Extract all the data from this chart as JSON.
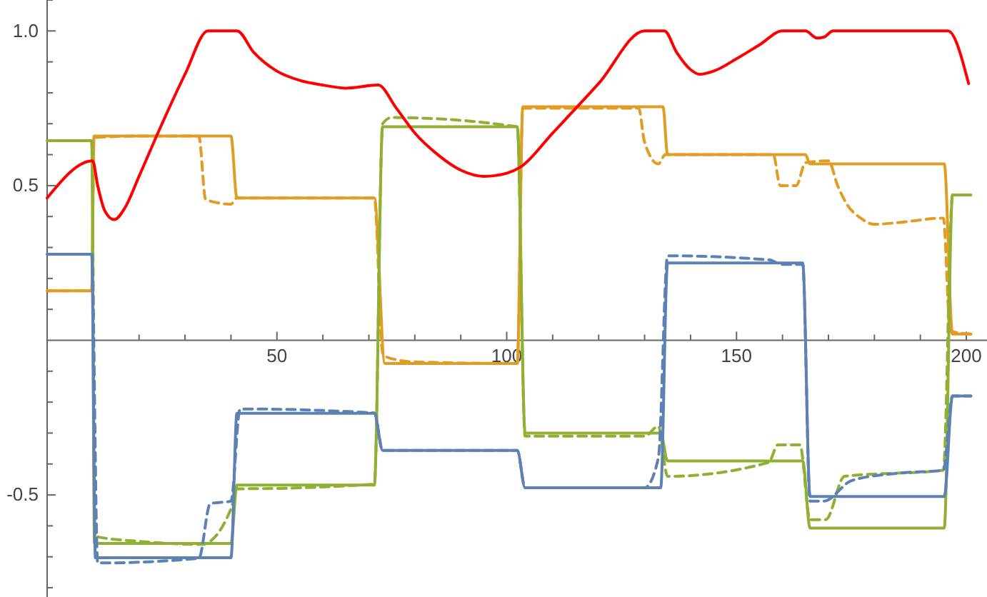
{
  "chart_data": {
    "type": "line",
    "xlim": [
      0,
      204.5
    ],
    "ylim": [
      -0.83,
      1.1
    ],
    "xticks": [
      {
        "value": 10,
        "label": null
      },
      {
        "value": 20,
        "label": null
      },
      {
        "value": 30,
        "label": null
      },
      {
        "value": 40,
        "label": null
      },
      50,
      {
        "value": 60,
        "label": null
      },
      {
        "value": 70,
        "label": null
      },
      {
        "value": 80,
        "label": null
      },
      {
        "value": 90,
        "label": null
      },
      100,
      {
        "value": 110,
        "label": null
      },
      {
        "value": 120,
        "label": null
      },
      {
        "value": 130,
        "label": null
      },
      {
        "value": 140,
        "label": null
      },
      150,
      {
        "value": 160,
        "label": null
      },
      {
        "value": 170,
        "label": null
      },
      {
        "value": 180,
        "label": null
      },
      {
        "value": 190,
        "label": null
      },
      200
    ],
    "yticks": [
      {
        "value": -0.8,
        "label": null
      },
      {
        "value": -0.7,
        "label": null
      },
      {
        "value": -0.6,
        "label": null
      },
      -0.5,
      {
        "value": -0.4,
        "label": null
      },
      {
        "value": -0.3,
        "label": null
      },
      {
        "value": -0.2,
        "label": null
      },
      {
        "value": -0.1,
        "label": null
      },
      {
        "value": 0.1,
        "label": null
      },
      {
        "value": 0.2,
        "label": null
      },
      {
        "value": 0.3,
        "label": null
      },
      {
        "value": 0.4,
        "label": null
      },
      0.5,
      {
        "value": 0.6,
        "label": null
      },
      {
        "value": 0.7,
        "label": null
      },
      {
        "value": 0.8,
        "label": null
      },
      {
        "value": 0.9,
        "label": null
      },
      {
        "value": 1,
        "label": "1.0"
      },
      {
        "value": 1.1,
        "label": null
      }
    ],
    "grid": false,
    "marker": "none",
    "series": [
      {
        "color": "#e19c24",
        "line_style": "solid",
        "x": [
          0,
          9.7,
          10.2,
          40,
          41.3,
          71.2,
          73.5,
          102.3,
          103.5,
          134,
          135,
          165,
          166,
          195.2,
          197,
          201
        ],
        "values": [
          0.16,
          0.16,
          0.66,
          0.66,
          0.46,
          0.46,
          -0.075,
          -0.075,
          0.755,
          0.755,
          0.6,
          0.6,
          0.57,
          0.57,
          0.02,
          0.02
        ]
      },
      {
        "color": "#e19c24",
        "line_style": "dashed",
        "x": [
          0,
          9.7,
          10.2,
          20,
          33,
          34.5,
          40,
          41.3,
          71.2,
          73,
          74,
          80,
          102.3,
          103.5,
          128.7,
          130,
          133,
          134.5,
          158,
          159.5,
          163,
          165,
          170,
          172,
          174,
          177,
          180,
          185,
          195,
          196.5,
          201
        ],
        "values": [
          0.16,
          0.16,
          0.655,
          0.66,
          0.66,
          0.455,
          0.44,
          0.46,
          0.46,
          -0.04,
          -0.055,
          -0.07,
          -0.075,
          0.75,
          0.75,
          0.64,
          0.57,
          0.6,
          0.6,
          0.5,
          0.5,
          0.574,
          0.58,
          0.5,
          0.44,
          0.395,
          0.375,
          0.38,
          0.395,
          0.03,
          0.02
        ]
      },
      {
        "color": "#8fb032",
        "line_style": "solid",
        "x": [
          0,
          9.7,
          10.3,
          40,
          41.3,
          71.2,
          73,
          102.3,
          104,
          133.5,
          135,
          164.4,
          166,
          195.2,
          197,
          201
        ],
        "values": [
          0.645,
          0.645,
          -0.657,
          -0.657,
          -0.468,
          -0.468,
          0.69,
          0.69,
          -0.3,
          -0.3,
          -0.39,
          -0.39,
          -0.607,
          -0.607,
          0.47,
          0.47
        ]
      },
      {
        "color": "#8fb032",
        "line_style": "dashed",
        "x": [
          0,
          9.7,
          10.5,
          20,
          33.6,
          40,
          41.3,
          42,
          71.2,
          73,
          75,
          100,
          102.3,
          104,
          130,
          133,
          135,
          157,
          159,
          163.8,
          166,
          169.4,
          173.5,
          195,
          197,
          201
        ],
        "values": [
          0.645,
          0.645,
          -0.634,
          -0.65,
          -0.66,
          -0.545,
          -0.48,
          -0.48,
          -0.465,
          0.7,
          0.72,
          0.695,
          0.69,
          -0.31,
          -0.31,
          -0.278,
          -0.44,
          -0.395,
          -0.338,
          -0.338,
          -0.58,
          -0.58,
          -0.44,
          -0.42,
          0.47,
          0.47
        ]
      },
      {
        "color": "#5e81b5",
        "line_style": "solid",
        "x": [
          0,
          9.7,
          10.5,
          40,
          41.3,
          71.2,
          73,
          102.3,
          104,
          133.5,
          135,
          164.4,
          166,
          195.2,
          197,
          201
        ],
        "values": [
          0.278,
          0.278,
          -0.703,
          -0.703,
          -0.236,
          -0.236,
          -0.356,
          -0.356,
          -0.477,
          -0.477,
          0.25,
          0.25,
          -0.505,
          -0.505,
          -0.18,
          -0.18
        ]
      },
      {
        "color": "#5e81b5",
        "line_style": "dashed",
        "x": [
          0,
          9.7,
          11,
          33,
          35.5,
          40,
          42,
          71.2,
          73,
          102.3,
          104,
          130,
          133,
          135,
          157,
          160,
          164.4,
          166,
          169,
          175,
          185,
          195,
          197,
          201
        ],
        "values": [
          0.278,
          0.278,
          -0.72,
          -0.705,
          -0.528,
          -0.52,
          -0.222,
          -0.235,
          -0.356,
          -0.356,
          -0.477,
          -0.477,
          -0.38,
          0.273,
          0.26,
          0.245,
          0.245,
          -0.52,
          -0.52,
          -0.454,
          -0.43,
          -0.42,
          -0.18,
          -0.18
        ]
      },
      {
        "color": "#ff0000",
        "line_style": "solid",
        "x": [
          0,
          9.9,
          11,
          12.5,
          14.6,
          17,
          20,
          25,
          30,
          35,
          41.3,
          45,
          50,
          55,
          60,
          65,
          72,
          76,
          80,
          85,
          90,
          95,
          100,
          103,
          110,
          120,
          130,
          134.3,
          137,
          140,
          142,
          145,
          150,
          155,
          160,
          165,
          167.5,
          169,
          171,
          196,
          200.5
        ],
        "values": [
          0.46,
          0.58,
          0.5,
          0.42,
          0.39,
          0.43,
          0.53,
          0.7,
          0.86,
          1,
          1,
          0.93,
          0.87,
          0.84,
          0.825,
          0.815,
          0.825,
          0.75,
          0.67,
          0.6,
          0.55,
          0.53,
          0.54,
          0.56,
          0.67,
          0.83,
          1,
          1,
          0.93,
          0.875,
          0.86,
          0.87,
          0.91,
          0.955,
          1,
          1,
          0.977,
          0.98,
          1,
          1,
          0.83
        ]
      }
    ]
  }
}
